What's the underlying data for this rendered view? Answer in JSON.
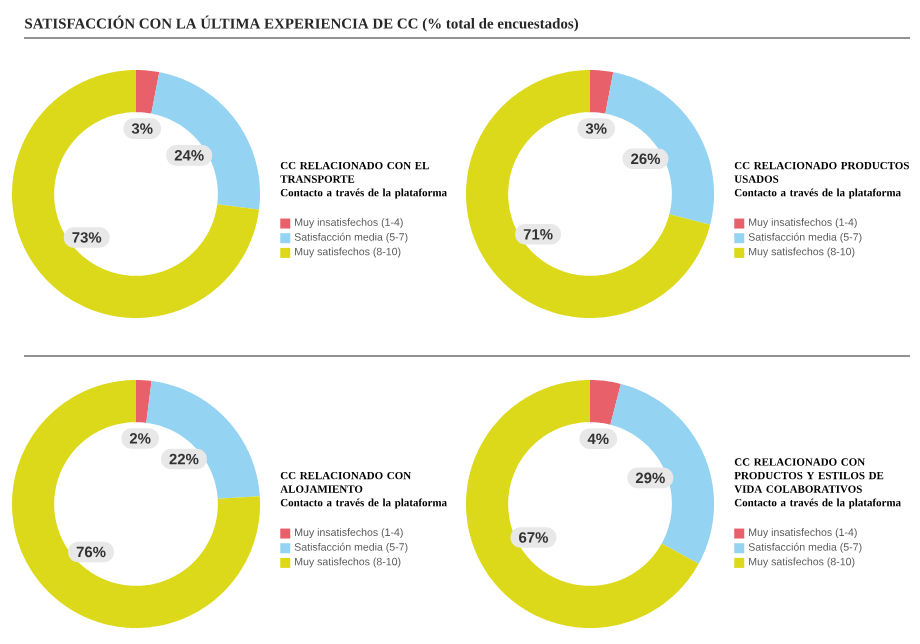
{
  "chart_data": [
    {
      "type": "donut",
      "annotations": [
        "SATISFACCIÓN CON LA ÚLTIMA EXPERIENCIA DE CC (% total de encuestados)"
      ],
      "title": "CC RELACIONADO CON EL TRANSPORTE",
      "subtitle": "Contacto a través de la plataforma",
      "categories": [
        "Muy insatisfechos (1-4)",
        "Satisfacción media (5-7)",
        "Muy satisfechos (8-10)"
      ],
      "values": [
        3,
        24,
        73
      ],
      "value_labels": [
        "3%",
        "24%",
        "73%"
      ],
      "colors": [
        "#e8606a",
        "#94d3f2",
        "#dcd81a"
      ],
      "legend": "right"
    },
    {
      "type": "donut",
      "title": "CC RELACIONADO PRODUCTOS USADOS",
      "subtitle": "Contacto a través de la plataforma",
      "categories": [
        "Muy insatisfechos (1-4)",
        "Satisfacción media (5-7)",
        "Muy satisfechos (8-10)"
      ],
      "values": [
        3,
        26,
        71
      ],
      "value_labels": [
        "3%",
        "26%",
        "71%"
      ],
      "colors": [
        "#e8606a",
        "#94d3f2",
        "#dcd81a"
      ],
      "legend": "right"
    },
    {
      "type": "donut",
      "title": "CC RELACIONADO CON ALOJAMIENTO",
      "subtitle": "Contacto a través de la plataforma",
      "categories": [
        "Muy insatisfechos (1-4)",
        "Satisfacción media (5-7)",
        "Muy satisfechos (8-10)"
      ],
      "values": [
        2,
        22,
        76
      ],
      "value_labels": [
        "2%",
        "22%",
        "76%"
      ],
      "colors": [
        "#e8606a",
        "#94d3f2",
        "#dcd81a"
      ],
      "legend": "right"
    },
    {
      "type": "donut",
      "title": "CC RELACIONADO CON PRODUCTOS Y ESTILOS DE VIDA COLABORATIVOS",
      "subtitle": "Contacto a través de la plataforma",
      "categories": [
        "Muy insatisfechos (1-4)",
        "Satisfacción media (5-7)",
        "Muy satisfechos (8-10)"
      ],
      "values": [
        4,
        29,
        67
      ],
      "value_labels": [
        "4%",
        "29%",
        "67%"
      ],
      "colors": [
        "#e8606a",
        "#94d3f2",
        "#dcd81a"
      ],
      "legend": "right"
    }
  ]
}
